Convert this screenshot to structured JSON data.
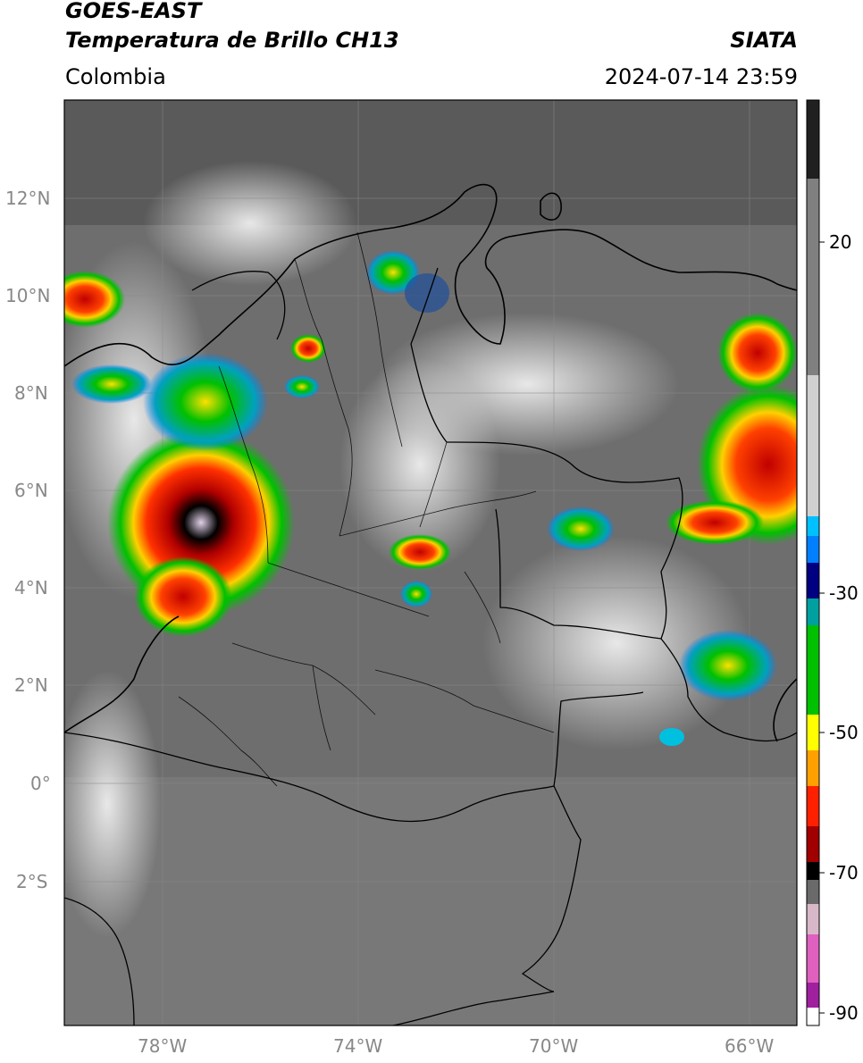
{
  "header": {
    "satellite": "GOES-EAST",
    "product": "Temperatura de Brillo CH13",
    "region": "Colombia",
    "agency": "SIATA",
    "timestamp": "2024-07-14 23:59"
  },
  "map": {
    "lat_labels": [
      "12°N",
      "10°N",
      "8°N",
      "6°N",
      "4°N",
      "2°N",
      "0°",
      "2°S"
    ],
    "lon_labels": [
      "78°W",
      "74°W",
      "70°W",
      "66°W"
    ]
  },
  "colorbar": {
    "tick_labels": [
      "20",
      "-30",
      "-50",
      "-70",
      "-90"
    ],
    "colors": [
      "#ffffff",
      "#a020a0",
      "#e060c0",
      "#d8b8c8",
      "#6a6a6a",
      "#000000",
      "#a00000",
      "#ff2000",
      "#ffa000",
      "#ffff00",
      "#00c000",
      "#00a0a0",
      "#000080",
      "#0080ff",
      "#00c0ff",
      "#d0d0d0",
      "#808080",
      "#202020"
    ]
  }
}
